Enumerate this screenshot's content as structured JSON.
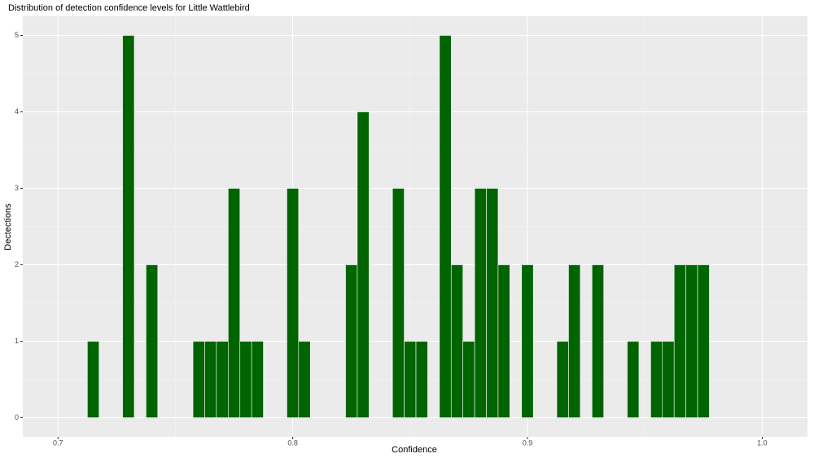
{
  "chart_data": {
    "type": "histogram",
    "title": "Distribution of detection confidence levels for Little Wattlebird",
    "xlabel": "Confidence",
    "ylabel": "Dectections",
    "bins": [
      0.7125,
      0.7175,
      0.7225,
      0.7275,
      0.7325,
      0.7375,
      0.7425,
      0.7475,
      0.7525,
      0.7575,
      0.7625,
      0.7675,
      0.7725,
      0.7775,
      0.7825,
      0.7875,
      0.7925,
      0.7975,
      0.8025,
      0.8075,
      0.8125,
      0.8175,
      0.8225,
      0.8275,
      0.8325,
      0.8375,
      0.8425,
      0.8475,
      0.8525,
      0.8575,
      0.8625,
      0.8675,
      0.8725,
      0.8775,
      0.8825,
      0.8875,
      0.8925,
      0.8975,
      0.9025,
      0.9075,
      0.9125,
      0.9175,
      0.9225,
      0.9275,
      0.9325,
      0.9375,
      0.9425,
      0.9475,
      0.9525,
      0.9575,
      0.9625,
      0.9675,
      0.9725,
      0.9775
    ],
    "values": [
      1,
      0,
      0,
      5,
      0,
      2,
      0,
      0,
      0,
      1,
      1,
      1,
      3,
      1,
      1,
      0,
      0,
      3,
      1,
      0,
      0,
      0,
      2,
      4,
      0,
      0,
      3,
      1,
      1,
      0,
      5,
      2,
      1,
      3,
      3,
      2,
      0,
      2,
      0,
      0,
      1,
      2,
      0,
      2,
      0,
      0,
      1,
      0,
      1,
      1,
      2,
      2,
      2
    ],
    "color": "#006400",
    "xlim": [
      0.685,
      1.0193
    ],
    "ylim": [
      -0.25,
      5.25
    ],
    "xticks": [
      0.7,
      0.8,
      0.9,
      {
        "value": 1,
        "label": "1.0"
      }
    ],
    "yticks": [
      0,
      1,
      2,
      3,
      4,
      5
    ],
    "xminor": [
      0.75,
      0.85,
      0.95
    ],
    "yminor": [
      0.5,
      1.5,
      2.5,
      3.5,
      4.5
    ],
    "grid": true
  }
}
